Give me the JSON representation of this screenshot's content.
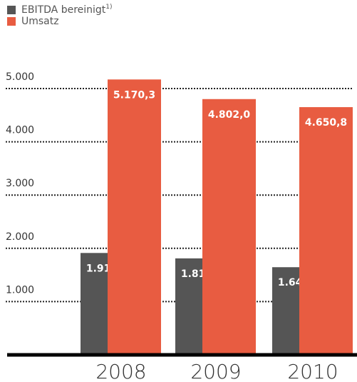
{
  "chart_data": {
    "type": "bar",
    "categories": [
      "2008",
      "2009",
      "2010"
    ],
    "series": [
      {
        "name": "EBITDA bereinigt",
        "name_note": "1)",
        "color": "#555555",
        "values": [
          1912.9,
          1811.6,
          1645.9
        ],
        "value_labels": [
          "1.912,9",
          "1.811,6",
          "1.645,9"
        ]
      },
      {
        "name": "Umsatz",
        "color": "#e85c41",
        "values": [
          5170.3,
          4802.0,
          4650.8
        ],
        "value_labels": [
          "5.170,3",
          "4.802,0",
          "4.650,8"
        ]
      }
    ],
    "ylim": [
      0,
      5300
    ],
    "yticks": [
      {
        "value": 1000,
        "label": "1.000"
      },
      {
        "value": 2000,
        "label": "2.000"
      },
      {
        "value": 3000,
        "label": "3.000"
      },
      {
        "value": 4000,
        "label": "4.000"
      },
      {
        "value": 5000,
        "label": "5.000"
      }
    ],
    "grid": true,
    "legend": "top-left"
  }
}
